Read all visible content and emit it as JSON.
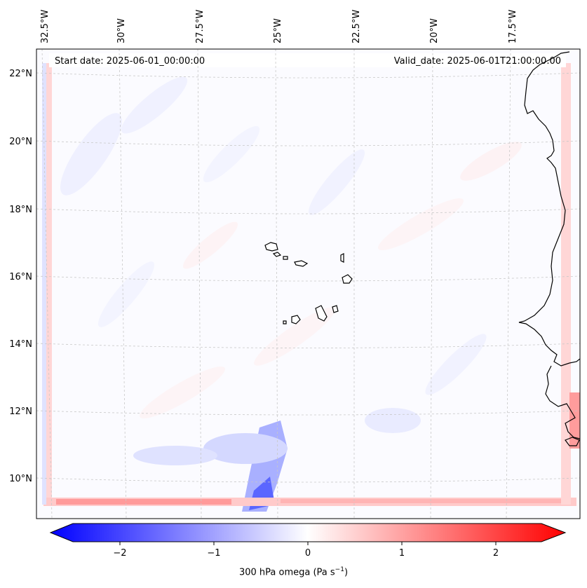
{
  "map": {
    "start_date": "Start date: 2025-06-01_00:00:00",
    "valid_date": "Valid_date: 2025-06-01T21:00:00.00",
    "lon_labels": [
      "32.5°W",
      "30°W",
      "27.5°W",
      "25°W",
      "22.5°W",
      "20°W",
      "17.5°W"
    ],
    "lat_labels": [
      "22°N",
      "20°N",
      "18°N",
      "16°N",
      "14°N",
      "12°N",
      "10°N"
    ],
    "variable": "300 hPa omega",
    "colors": {
      "negative": "#0000ff",
      "zero": "#ffffff",
      "positive": "#ff0000",
      "coast": "#000000",
      "grid": "#c8c8c8"
    }
  },
  "colorbar": {
    "ticks": [
      "−2",
      "−1",
      "0",
      "1",
      "2"
    ],
    "tick_values": [
      -2,
      -1,
      0,
      1,
      2
    ],
    "range": [
      -2.5,
      2.5
    ],
    "label_text": "300 hPa omega (Pa s",
    "label_exp": "−1",
    "label_close": ")"
  }
}
